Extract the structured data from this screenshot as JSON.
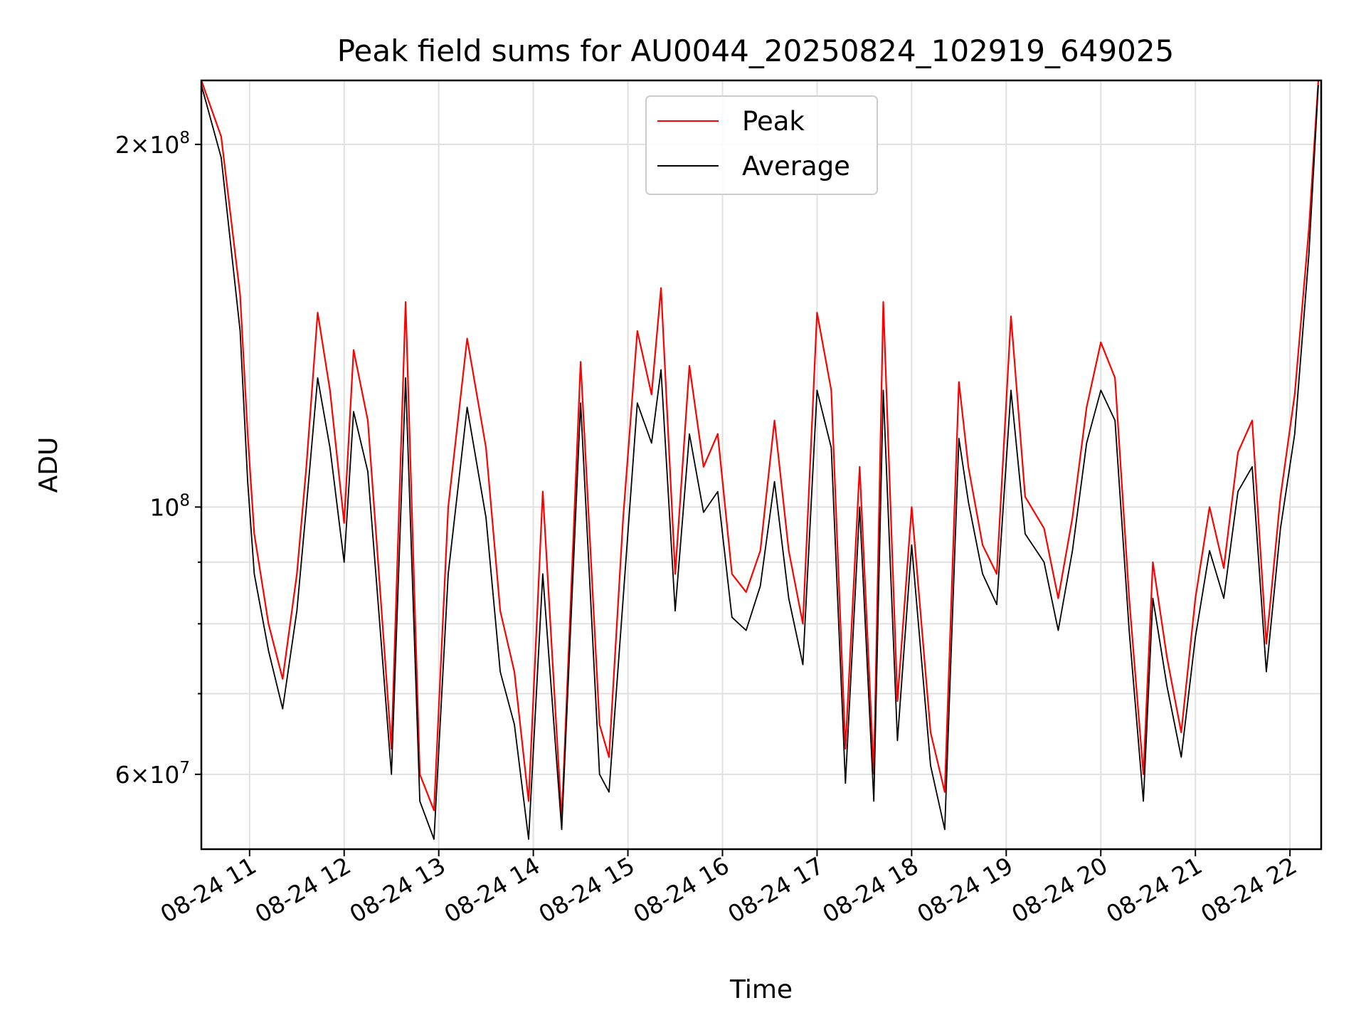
{
  "chart_data": {
    "type": "line",
    "title": "Peak field sums for AU0044_20250824_102919_649025",
    "xlabel": "Time",
    "ylabel": "ADU",
    "x_axis": {
      "start": "2025-08-24 10:29",
      "end": "2025-08-24 22:20",
      "tick_labels": [
        "08-24 11",
        "08-24 12",
        "08-24 13",
        "08-24 14",
        "08-24 15",
        "08-24 16",
        "08-24 17",
        "08-24 18",
        "08-24 19",
        "08-24 20",
        "08-24 21",
        "08-24 22"
      ],
      "tick_hours": [
        11,
        12,
        13,
        14,
        15,
        16,
        17,
        18,
        19,
        20,
        21,
        22
      ]
    },
    "y_axis": {
      "scale": "log",
      "ylim": [
        52000000,
        226000000
      ],
      "major_ticks": [
        {
          "value": 60000000,
          "label_base": "6×10",
          "label_exp": "7"
        },
        {
          "value": 100000000,
          "label_base": "10",
          "label_exp": "8"
        },
        {
          "value": 200000000,
          "label_base": "2×10",
          "label_exp": "8"
        }
      ],
      "minor_ticks": [
        70000000,
        80000000,
        90000000
      ]
    },
    "grid": true,
    "legend_position": "upper center",
    "series": [
      {
        "name": "Peak",
        "color": "#ff0000",
        "x_hours": [
          10.49,
          10.7,
          10.9,
          10.98,
          11.05,
          11.2,
          11.35,
          11.5,
          11.6,
          11.72,
          11.85,
          12.0,
          12.1,
          12.25,
          12.35,
          12.5,
          12.65,
          12.8,
          12.95,
          13.1,
          13.3,
          13.5,
          13.65,
          13.8,
          13.95,
          14.1,
          14.3,
          14.5,
          14.7,
          14.8,
          14.95,
          15.1,
          15.25,
          15.35,
          15.5,
          15.65,
          15.8,
          15.95,
          16.1,
          16.25,
          16.4,
          16.55,
          16.7,
          16.85,
          17.0,
          17.15,
          17.3,
          17.45,
          17.6,
          17.7,
          17.85,
          18.0,
          18.2,
          18.35,
          18.5,
          18.6,
          18.75,
          18.9,
          19.05,
          19.2,
          19.4,
          19.55,
          19.7,
          19.85,
          20.0,
          20.15,
          20.3,
          20.45,
          20.55,
          20.7,
          20.85,
          21.0,
          21.15,
          21.3,
          21.45,
          21.6,
          21.75,
          21.9,
          22.05,
          22.2,
          22.3
        ],
        "values": [
          226000000,
          203000000,
          150000000,
          115000000,
          95000000,
          80000000,
          72000000,
          88000000,
          108000000,
          145000000,
          125000000,
          97000000,
          135000000,
          118000000,
          92000000,
          63000000,
          148000000,
          60000000,
          56000000,
          100000000,
          138000000,
          112000000,
          82000000,
          73000000,
          57000000,
          103000000,
          55000000,
          132000000,
          66000000,
          62000000,
          98000000,
          140000000,
          124000000,
          152000000,
          88000000,
          131000000,
          108000000,
          115000000,
          88000000,
          85000000,
          92000000,
          118000000,
          92000000,
          80000000,
          145000000,
          125000000,
          63000000,
          108000000,
          60000000,
          148000000,
          69000000,
          100000000,
          65000000,
          58000000,
          127000000,
          108000000,
          93000000,
          88000000,
          144000000,
          102000000,
          96000000,
          84000000,
          98000000,
          121000000,
          137000000,
          128000000,
          84000000,
          60000000,
          90000000,
          75000000,
          65000000,
          84000000,
          100000000,
          89000000,
          111000000,
          118000000,
          77000000,
          102000000,
          124000000,
          170000000,
          226000000
        ]
      },
      {
        "name": "Average",
        "color": "#000000",
        "x_hours": [
          10.49,
          10.7,
          10.9,
          10.98,
          11.05,
          11.2,
          11.35,
          11.5,
          11.6,
          11.72,
          11.85,
          12.0,
          12.1,
          12.25,
          12.35,
          12.5,
          12.65,
          12.8,
          12.95,
          13.1,
          13.3,
          13.5,
          13.65,
          13.8,
          13.95,
          14.1,
          14.3,
          14.5,
          14.7,
          14.8,
          14.95,
          15.1,
          15.25,
          15.35,
          15.5,
          15.65,
          15.8,
          15.95,
          16.1,
          16.25,
          16.4,
          16.55,
          16.7,
          16.85,
          17.0,
          17.15,
          17.3,
          17.45,
          17.6,
          17.7,
          17.85,
          18.0,
          18.2,
          18.35,
          18.5,
          18.6,
          18.75,
          18.9,
          19.05,
          19.2,
          19.4,
          19.55,
          19.7,
          19.85,
          20.0,
          20.15,
          20.3,
          20.45,
          20.55,
          20.7,
          20.85,
          21.0,
          21.15,
          21.3,
          21.45,
          21.6,
          21.75,
          21.9,
          22.05,
          22.2,
          22.3
        ],
        "values": [
          224000000,
          195000000,
          140000000,
          105000000,
          88000000,
          76000000,
          68000000,
          82000000,
          100000000,
          128000000,
          112000000,
          90000000,
          120000000,
          107000000,
          85000000,
          60000000,
          128000000,
          57000000,
          53000000,
          88000000,
          121000000,
          98000000,
          73000000,
          66000000,
          53000000,
          88000000,
          54000000,
          122000000,
          60000000,
          58000000,
          84000000,
          122000000,
          113000000,
          130000000,
          82000000,
          115000000,
          99000000,
          103000000,
          81000000,
          79000000,
          86000000,
          105000000,
          84000000,
          74000000,
          125000000,
          112000000,
          59000000,
          100000000,
          57000000,
          125000000,
          64000000,
          93000000,
          61000000,
          54000000,
          114000000,
          101000000,
          88000000,
          83000000,
          125000000,
          95000000,
          90000000,
          79000000,
          92000000,
          113000000,
          125000000,
          118000000,
          79000000,
          57000000,
          84000000,
          71000000,
          62000000,
          78000000,
          92000000,
          84000000,
          103000000,
          108000000,
          73000000,
          96000000,
          115000000,
          162000000,
          224000000
        ]
      }
    ]
  }
}
